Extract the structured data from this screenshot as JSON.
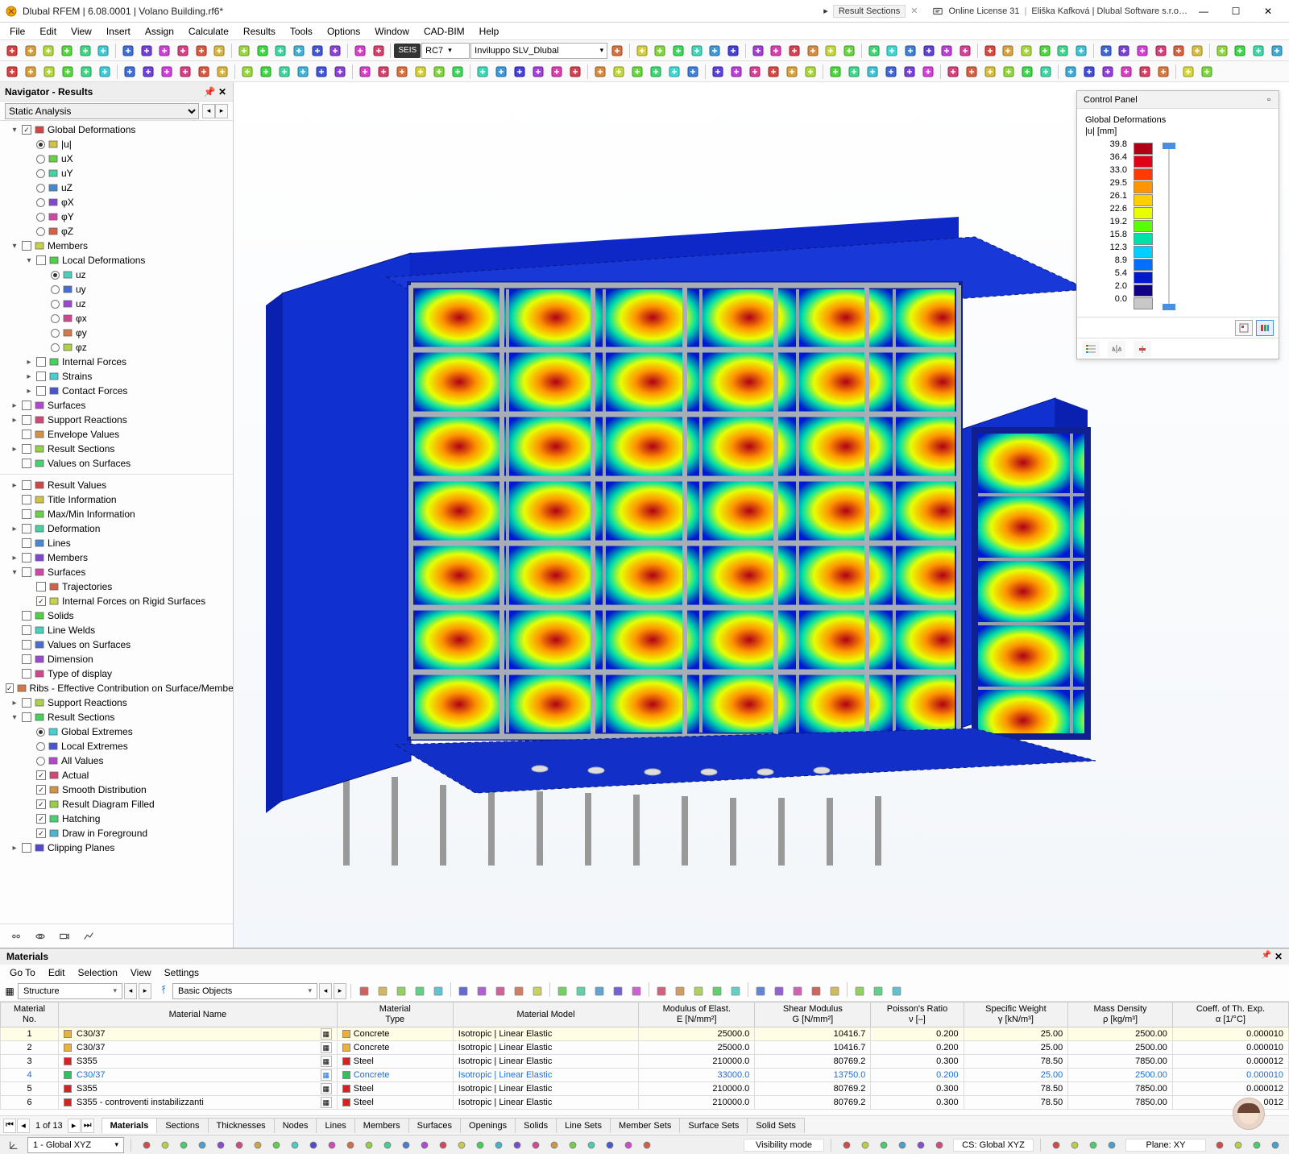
{
  "title": "Dlubal RFEM | 6.08.0001 | Volano Building.rf6*",
  "doc_tab": "Result Sections",
  "license": "Online License 31",
  "user": "Eliška Kafková | Dlubal Software s.r.o…",
  "menu": [
    "File",
    "Edit",
    "View",
    "Insert",
    "Assign",
    "Calculate",
    "Results",
    "Tools",
    "Options",
    "Window",
    "CAD-BIM",
    "Help"
  ],
  "toolbar1_badge": "SEIS",
  "toolbar1_combo1": "RC7",
  "toolbar1_combo2": "Inviluppo SLV_Dlubal",
  "navigator": {
    "title": "Navigator - Results",
    "mode": "Static Analysis"
  },
  "tree": [
    {
      "lvl": 0,
      "exp": "v",
      "chk": true,
      "ico": "def",
      "txt": "Global Deformations"
    },
    {
      "lvl": 1,
      "rad": true,
      "ico": "bar",
      "txt": "|u|"
    },
    {
      "lvl": 1,
      "rad": false,
      "ico": "bar",
      "txt": "uX"
    },
    {
      "lvl": 1,
      "rad": false,
      "ico": "bar",
      "txt": "uY"
    },
    {
      "lvl": 1,
      "rad": false,
      "ico": "bar",
      "txt": "uZ"
    },
    {
      "lvl": 1,
      "rad": false,
      "ico": "bar",
      "txt": "φX"
    },
    {
      "lvl": 1,
      "rad": false,
      "ico": "bar",
      "txt": "φY"
    },
    {
      "lvl": 1,
      "rad": false,
      "ico": "bar",
      "txt": "φZ"
    },
    {
      "lvl": 0,
      "exp": "v",
      "chk": false,
      "ico": "mem",
      "txt": "Members"
    },
    {
      "lvl": 1,
      "exp": "v",
      "chk": false,
      "ico": "ldef",
      "txt": "Local Deformations"
    },
    {
      "lvl": 2,
      "rad": true,
      "ico": "uz",
      "txt": "uz"
    },
    {
      "lvl": 2,
      "rad": false,
      "ico": "uz",
      "txt": "uy"
    },
    {
      "lvl": 2,
      "rad": false,
      "ico": "uz",
      "txt": "uz"
    },
    {
      "lvl": 2,
      "rad": false,
      "ico": "uz",
      "txt": "φx"
    },
    {
      "lvl": 2,
      "rad": false,
      "ico": "uz",
      "txt": "φy"
    },
    {
      "lvl": 2,
      "rad": false,
      "ico": "uz",
      "txt": "φz"
    },
    {
      "lvl": 1,
      "exp": ">",
      "chk": false,
      "ico": "if",
      "txt": "Internal Forces"
    },
    {
      "lvl": 1,
      "exp": ">",
      "chk": false,
      "ico": "str",
      "txt": "Strains"
    },
    {
      "lvl": 1,
      "exp": ">",
      "chk": false,
      "ico": "cf",
      "txt": "Contact Forces"
    },
    {
      "lvl": 0,
      "exp": ">",
      "chk": false,
      "ico": "surf",
      "txt": "Surfaces"
    },
    {
      "lvl": 0,
      "exp": ">",
      "chk": false,
      "ico": "sr",
      "txt": "Support Reactions"
    },
    {
      "lvl": 0,
      "exp": "",
      "chk": false,
      "ico": "env",
      "txt": "Envelope Values"
    },
    {
      "lvl": 0,
      "exp": ">",
      "chk": false,
      "ico": "rs",
      "txt": "Result Sections"
    },
    {
      "lvl": 0,
      "exp": "",
      "chk": false,
      "ico": "vs",
      "txt": "Values on Surfaces"
    }
  ],
  "tree2": [
    {
      "lvl": 0,
      "exp": ">",
      "chk": false,
      "ico": "rv",
      "txt": "Result Values"
    },
    {
      "lvl": 0,
      "exp": "",
      "chk": false,
      "ico": "ti",
      "txt": "Title Information"
    },
    {
      "lvl": 0,
      "exp": "",
      "chk": false,
      "ico": "mm",
      "txt": "Max/Min Information"
    },
    {
      "lvl": 0,
      "exp": ">",
      "chk": false,
      "ico": "def",
      "txt": "Deformation"
    },
    {
      "lvl": 0,
      "exp": "",
      "chk": false,
      "ico": "ln",
      "txt": "Lines"
    },
    {
      "lvl": 0,
      "exp": ">",
      "chk": false,
      "ico": "mem",
      "txt": "Members"
    },
    {
      "lvl": 0,
      "exp": "v",
      "chk": false,
      "ico": "surf",
      "txt": "Surfaces"
    },
    {
      "lvl": 1,
      "exp": "",
      "chk": false,
      "ico": "tr",
      "txt": "Trajectories"
    },
    {
      "lvl": 1,
      "exp": "",
      "chk": true,
      "ico": "ifr",
      "txt": "Internal Forces on Rigid Surfaces"
    },
    {
      "lvl": 0,
      "exp": "",
      "chk": false,
      "ico": "sol",
      "txt": "Solids"
    },
    {
      "lvl": 0,
      "exp": "",
      "chk": false,
      "ico": "lw",
      "txt": "Line Welds"
    },
    {
      "lvl": 0,
      "exp": "",
      "chk": false,
      "ico": "vs",
      "txt": "Values on Surfaces"
    },
    {
      "lvl": 0,
      "exp": "",
      "chk": false,
      "ico": "dim",
      "txt": "Dimension"
    },
    {
      "lvl": 0,
      "exp": "",
      "chk": false,
      "ico": "tod",
      "txt": "Type of display"
    },
    {
      "lvl": 0,
      "exp": "",
      "chk": true,
      "ico": "rib",
      "txt": "Ribs - Effective Contribution on Surface/Member"
    },
    {
      "lvl": 0,
      "exp": ">",
      "chk": false,
      "ico": "sr",
      "txt": "Support Reactions"
    },
    {
      "lvl": 0,
      "exp": "v",
      "chk": false,
      "ico": "rs",
      "txt": "Result Sections"
    },
    {
      "lvl": 1,
      "rad": true,
      "ico": "ge",
      "txt": "Global Extremes"
    },
    {
      "lvl": 1,
      "rad": false,
      "ico": "le",
      "txt": "Local Extremes"
    },
    {
      "lvl": 1,
      "rad": false,
      "ico": "av",
      "txt": "All Values"
    },
    {
      "lvl": 1,
      "chk": true,
      "ico": "ac",
      "txt": "Actual"
    },
    {
      "lvl": 1,
      "chk": true,
      "ico": "sd",
      "txt": "Smooth Distribution"
    },
    {
      "lvl": 1,
      "chk": true,
      "ico": "rdf",
      "txt": "Result Diagram Filled"
    },
    {
      "lvl": 1,
      "chk": true,
      "ico": "ht",
      "txt": "Hatching"
    },
    {
      "lvl": 1,
      "chk": true,
      "ico": "dif",
      "txt": "Draw in Foreground"
    },
    {
      "lvl": 0,
      "exp": ">",
      "chk": false,
      "ico": "cp",
      "txt": "Clipping Planes"
    }
  ],
  "control_panel": {
    "header": "Control Panel",
    "title": "Global Deformations",
    "unit": "|u|  [mm]",
    "legend": [
      {
        "v": "39.8",
        "c": "#b00015"
      },
      {
        "v": "36.4",
        "c": "#e00018"
      },
      {
        "v": "33.0",
        "c": "#ff3b00"
      },
      {
        "v": "29.5",
        "c": "#ff9500"
      },
      {
        "v": "26.1",
        "c": "#ffd000"
      },
      {
        "v": "22.6",
        "c": "#e8ff00"
      },
      {
        "v": "19.2",
        "c": "#5aff00"
      },
      {
        "v": "15.8",
        "c": "#00e0a8"
      },
      {
        "v": "12.3",
        "c": "#00d0ff"
      },
      {
        "v": "8.9",
        "c": "#0070ff"
      },
      {
        "v": "5.4",
        "c": "#0018d0"
      },
      {
        "v": "2.0",
        "c": "#100088"
      },
      {
        "v": "0.0",
        "c": "#c8c8c8"
      }
    ]
  },
  "materials": {
    "title": "Materials",
    "menu": [
      "Go To",
      "Edit",
      "Selection",
      "View",
      "Settings"
    ],
    "combo1": "Structure",
    "combo2": "Basic Objects",
    "header_main": [
      "Material\nNo.",
      "Material Name",
      "Material\nType",
      "Material Model",
      "Modulus of Elast.\nE [N/mm²]",
      "Shear Modulus\nG [N/mm²]",
      "Poisson's Ratio\nν [–]",
      "Specific Weight\nγ [kN/m³]",
      "Mass Density\nρ [kg/m³]",
      "Coeff. of Th. Exp.\nα [1/°C]"
    ],
    "rows": [
      {
        "no": "1",
        "name": "C30/37",
        "sw": "#e9b23b",
        "type": "Concrete",
        "model": "Isotropic | Linear Elastic",
        "E": "25000.0",
        "G": "10416.7",
        "v": "0.200",
        "w": "25.00",
        "d": "2500.00",
        "a": "0.000010",
        "sel": true
      },
      {
        "no": "2",
        "name": "C30/37",
        "sw": "#e9b23b",
        "type": "Concrete",
        "model": "Isotropic | Linear Elastic",
        "E": "25000.0",
        "G": "10416.7",
        "v": "0.200",
        "w": "25.00",
        "d": "2500.00",
        "a": "0.000010"
      },
      {
        "no": "3",
        "name": "S355",
        "sw": "#d62222",
        "type": "Steel",
        "model": "Isotropic | Linear Elastic",
        "E": "210000.0",
        "G": "80769.2",
        "v": "0.300",
        "w": "78.50",
        "d": "7850.00",
        "a": "0.000012"
      },
      {
        "no": "4",
        "name": "C30/37",
        "sw": "#30c060",
        "type": "Concrete",
        "model": "Isotropic | Linear Elastic",
        "E": "33000.0",
        "G": "13750.0",
        "v": "0.200",
        "w": "25.00",
        "d": "2500.00",
        "a": "0.000010",
        "hl": true
      },
      {
        "no": "5",
        "name": "S355",
        "sw": "#d62222",
        "type": "Steel",
        "model": "Isotropic | Linear Elastic",
        "E": "210000.0",
        "G": "80769.2",
        "v": "0.300",
        "w": "78.50",
        "d": "7850.00",
        "a": "0.000012"
      },
      {
        "no": "6",
        "name": "S355 - controventi instabilizzanti",
        "sw": "#d62222",
        "type": "Steel",
        "model": "Isotropic | Linear Elastic",
        "E": "210000.0",
        "G": "80769.2",
        "v": "0.300",
        "w": "78.50",
        "d": "7850.00",
        "a": "0012"
      }
    ],
    "page": "1 of 13",
    "tabs": [
      "Materials",
      "Sections",
      "Thicknesses",
      "Nodes",
      "Lines",
      "Members",
      "Surfaces",
      "Openings",
      "Solids",
      "Line Sets",
      "Member Sets",
      "Surface Sets",
      "Solid Sets"
    ],
    "active_tab": 0
  },
  "status": {
    "cs_combo": "1 - Global XYZ",
    "vis": "Visibility mode",
    "cs": "CS: Global XYZ",
    "plane": "Plane: XY"
  }
}
